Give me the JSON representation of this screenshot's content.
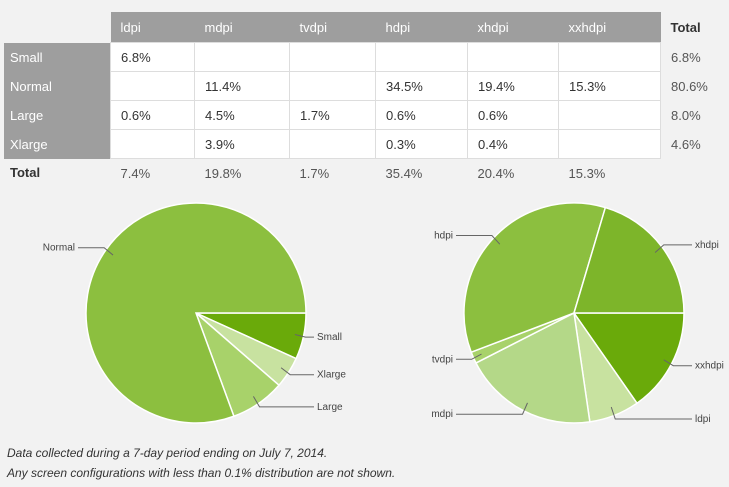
{
  "table": {
    "columns": [
      "ldpi",
      "mdpi",
      "tvdpi",
      "hdpi",
      "xhdpi",
      "xxhdpi"
    ],
    "total_label": "Total",
    "rows": [
      {
        "label": "Small",
        "cells": [
          "6.8%",
          "",
          "",
          "",
          "",
          ""
        ],
        "total": "6.8%"
      },
      {
        "label": "Normal",
        "cells": [
          "",
          "11.4%",
          "",
          "34.5%",
          "19.4%",
          "15.3%"
        ],
        "total": "80.6%"
      },
      {
        "label": "Large",
        "cells": [
          "0.6%",
          "4.5%",
          "1.7%",
          "0.6%",
          "0.6%",
          ""
        ],
        "total": "8.0%"
      },
      {
        "label": "Xlarge",
        "cells": [
          "",
          "3.9%",
          "",
          "0.3%",
          "0.4%",
          ""
        ],
        "total": "4.6%"
      }
    ],
    "totals": [
      "7.4%",
      "19.8%",
      "1.7%",
      "35.4%",
      "20.4%",
      "15.3%"
    ]
  },
  "chart_data": [
    {
      "type": "pie",
      "slices": [
        {
          "label": "Small",
          "value": 6.8,
          "color": "#6aaa0a"
        },
        {
          "label": "Xlarge",
          "value": 4.6,
          "color": "#c8e2a0"
        },
        {
          "label": "Large",
          "value": 8.0,
          "color": "#a8d26a"
        },
        {
          "label": "Normal",
          "value": 80.6,
          "color": "#8cbf3f"
        }
      ]
    },
    {
      "type": "pie",
      "slices": [
        {
          "label": "xxhdpi",
          "value": 15.3,
          "color": "#6aaa0a"
        },
        {
          "label": "ldpi",
          "value": 7.4,
          "color": "#c8e2a0"
        },
        {
          "label": "mdpi",
          "value": 19.8,
          "color": "#b4d888"
        },
        {
          "label": "tvdpi",
          "value": 1.7,
          "color": "#a8d26a"
        },
        {
          "label": "hdpi",
          "value": 35.4,
          "color": "#8cbf3f"
        },
        {
          "label": "xhdpi",
          "value": 20.4,
          "color": "#7db52a"
        }
      ]
    }
  ],
  "footnotes": [
    "Data collected during a 7-day period ending on July 7, 2014.",
    "Any screen configurations with less than 0.1% distribution are not shown."
  ]
}
